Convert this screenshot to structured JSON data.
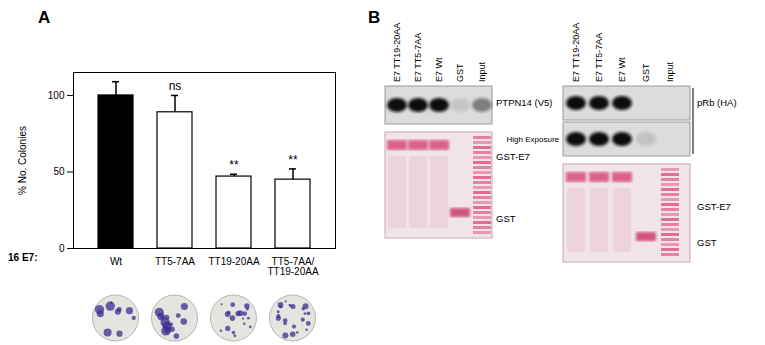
{
  "chart_data": {
    "type": "bar",
    "y_label": "% No. Colonies",
    "x_label": "16 E7:",
    "categories": [
      "Wt",
      "TT5-7AA",
      "TT19-20AA",
      "TT5-7AA/TT19-20AA"
    ],
    "values": [
      100,
      89,
      47,
      45
    ],
    "errors": [
      9,
      11,
      1.5,
      7
    ],
    "colors": [
      "#000000",
      "#ffffff",
      "#ffffff",
      "#ffffff"
    ],
    "significance": [
      null,
      "ns",
      "**",
      "**"
    ],
    "ylim": [
      0,
      115
    ],
    "yticks": [
      0,
      50,
      100
    ]
  },
  "panel_labels": [
    "A",
    "B"
  ],
  "blots": [
    {
      "lanes": [
        "E7 TT19-20AA",
        "E7 TT5-7AA",
        "E7 Wt",
        "GST",
        "Input"
      ],
      "antibody": "PTPN14 (V5)",
      "stain_labels": [
        "GST-E7",
        "GST"
      ]
    },
    {
      "lanes": [
        "E7 TT19-20AA",
        "E7 TT5-7AA",
        "E7 Wt",
        "GST",
        "Input"
      ],
      "antibody": "pRb (HA)",
      "exposure_label": "High Exposure",
      "stain_labels": [
        "GST-E7",
        "GST"
      ]
    }
  ]
}
